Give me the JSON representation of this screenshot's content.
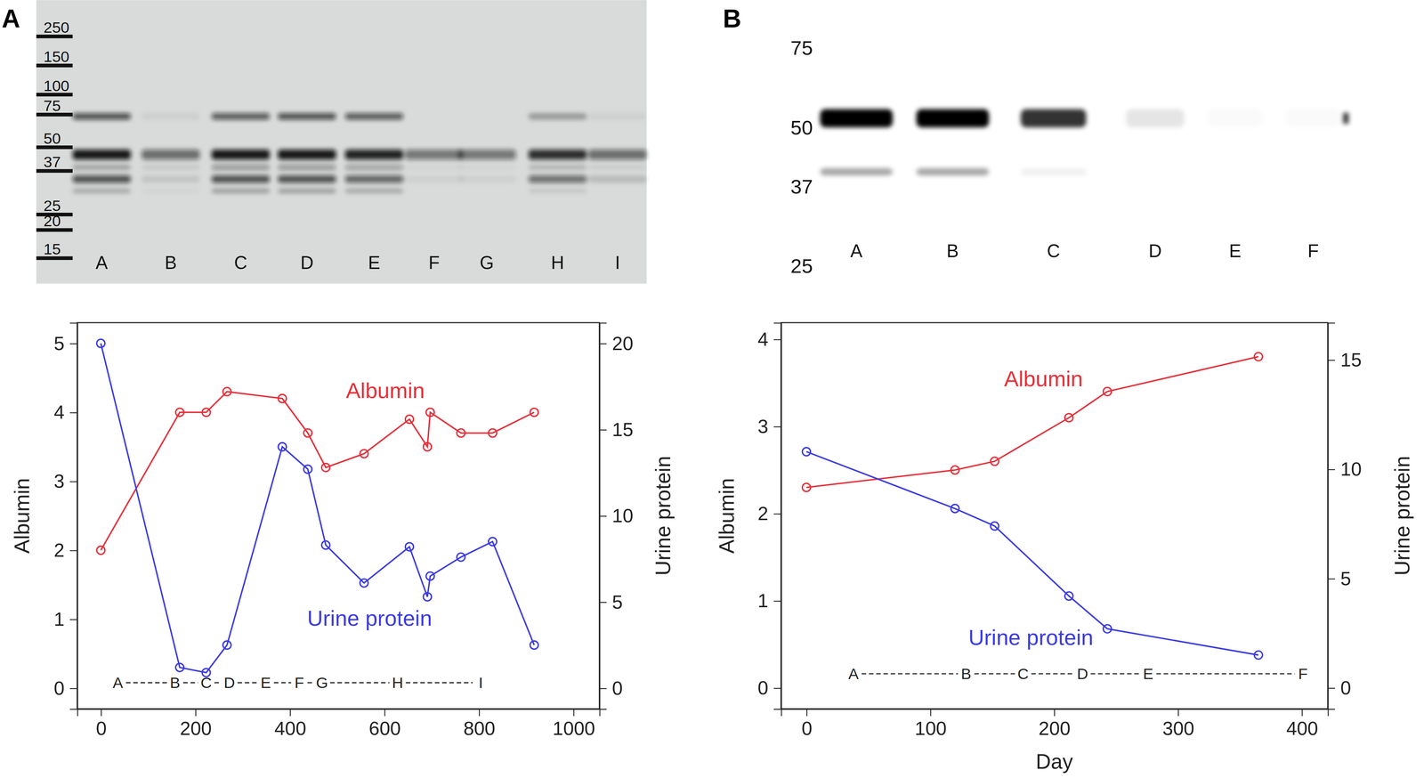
{
  "panel_labels": [
    "A",
    "B"
  ],
  "blots": [
    {
      "markers": [
        250,
        150,
        100,
        75,
        50,
        37,
        25,
        20,
        15
      ],
      "lanes": [
        "A",
        "B",
        "C",
        "D",
        "E",
        "F",
        "G",
        "H",
        "I"
      ]
    },
    {
      "markers": [
        75,
        50,
        37,
        25
      ],
      "lanes": [
        "A",
        "B",
        "C",
        "D",
        "E",
        "F"
      ]
    }
  ],
  "chart_data": [
    {
      "type": "line",
      "y_label": "Albumin",
      "y2_label": "Urine protein",
      "x": [
        0,
        167,
        223,
        267,
        384,
        438,
        476,
        557,
        653,
        691,
        697,
        762,
        829,
        917
      ],
      "xlim": [
        -50,
        1055
      ],
      "xticks": [
        0,
        200,
        400,
        600,
        800,
        1000
      ],
      "ylim": [
        -0.3,
        5.3
      ],
      "yticks": [
        0,
        1,
        2,
        3,
        4,
        5
      ],
      "y2lim": [
        -1.2,
        21.2
      ],
      "y2ticks": [
        0,
        5,
        10,
        15,
        20
      ],
      "series": [
        {
          "name": "Albumin",
          "color": "#e8303a",
          "marker": "circle",
          "values": [
            2.0,
            4.0,
            4.0,
            4.3,
            4.2,
            3.7,
            3.2,
            3.4,
            3.9,
            3.5,
            4.0,
            3.7,
            3.7,
            4.0
          ]
        },
        {
          "name": "Urine protein",
          "color": "#3b3be6",
          "marker": "circle",
          "axis": "y2",
          "values": [
            20.0,
            1.2,
            0.9,
            2.5,
            14.0,
            12.7,
            8.3,
            6.1,
            8.2,
            5.3,
            6.5,
            7.6,
            8.5,
            2.5
          ]
        }
      ],
      "annotations": [
        {
          "text": "A",
          "x": 36,
          "y": 0
        },
        {
          "text": "B",
          "x": 157,
          "y": 0
        },
        {
          "text": "C",
          "x": 223,
          "y": 0
        },
        {
          "text": "D",
          "x": 272,
          "y": 0
        },
        {
          "text": "E",
          "x": 349,
          "y": 0
        },
        {
          "text": "F",
          "x": 420,
          "y": 0
        },
        {
          "text": "G",
          "x": 468,
          "y": 0
        },
        {
          "text": "H",
          "x": 628,
          "y": 0
        },
        {
          "text": "I",
          "x": 804,
          "y": 0
        }
      ]
    },
    {
      "type": "line",
      "x_label": "Day",
      "y_label": "Albumin",
      "y2_label": "Urine protein",
      "x": [
        0,
        120,
        152,
        212,
        243,
        365
      ],
      "xlim": [
        -20.5,
        421
      ],
      "xticks": [
        0,
        100,
        200,
        300,
        400
      ],
      "ylim": [
        -0.24,
        4.19
      ],
      "yticks": [
        0,
        1,
        2,
        3,
        4
      ],
      "y2lim": [
        -0.96,
        16.7
      ],
      "y2ticks": [
        0,
        5,
        10,
        15
      ],
      "series": [
        {
          "name": "Albumin",
          "color": "#e8303a",
          "marker": "circle",
          "values": [
            2.3,
            2.5,
            2.6,
            3.1,
            3.4,
            3.8
          ]
        },
        {
          "name": "Urine protein",
          "color": "#3b3be6",
          "marker": "circle",
          "axis": "y2",
          "values": [
            10.8,
            8.2,
            7.4,
            4.2,
            2.7,
            1.5
          ]
        }
      ],
      "annotations": [
        {
          "text": "A",
          "x": 38,
          "y": 0.1
        },
        {
          "text": "B",
          "x": 129,
          "y": 0.1
        },
        {
          "text": "C",
          "x": 175,
          "y": 0.1
        },
        {
          "text": "D",
          "x": 223,
          "y": 0.1
        },
        {
          "text": "E",
          "x": 276,
          "y": 0.1
        },
        {
          "text": "F",
          "x": 401,
          "y": 0.1
        }
      ]
    }
  ]
}
